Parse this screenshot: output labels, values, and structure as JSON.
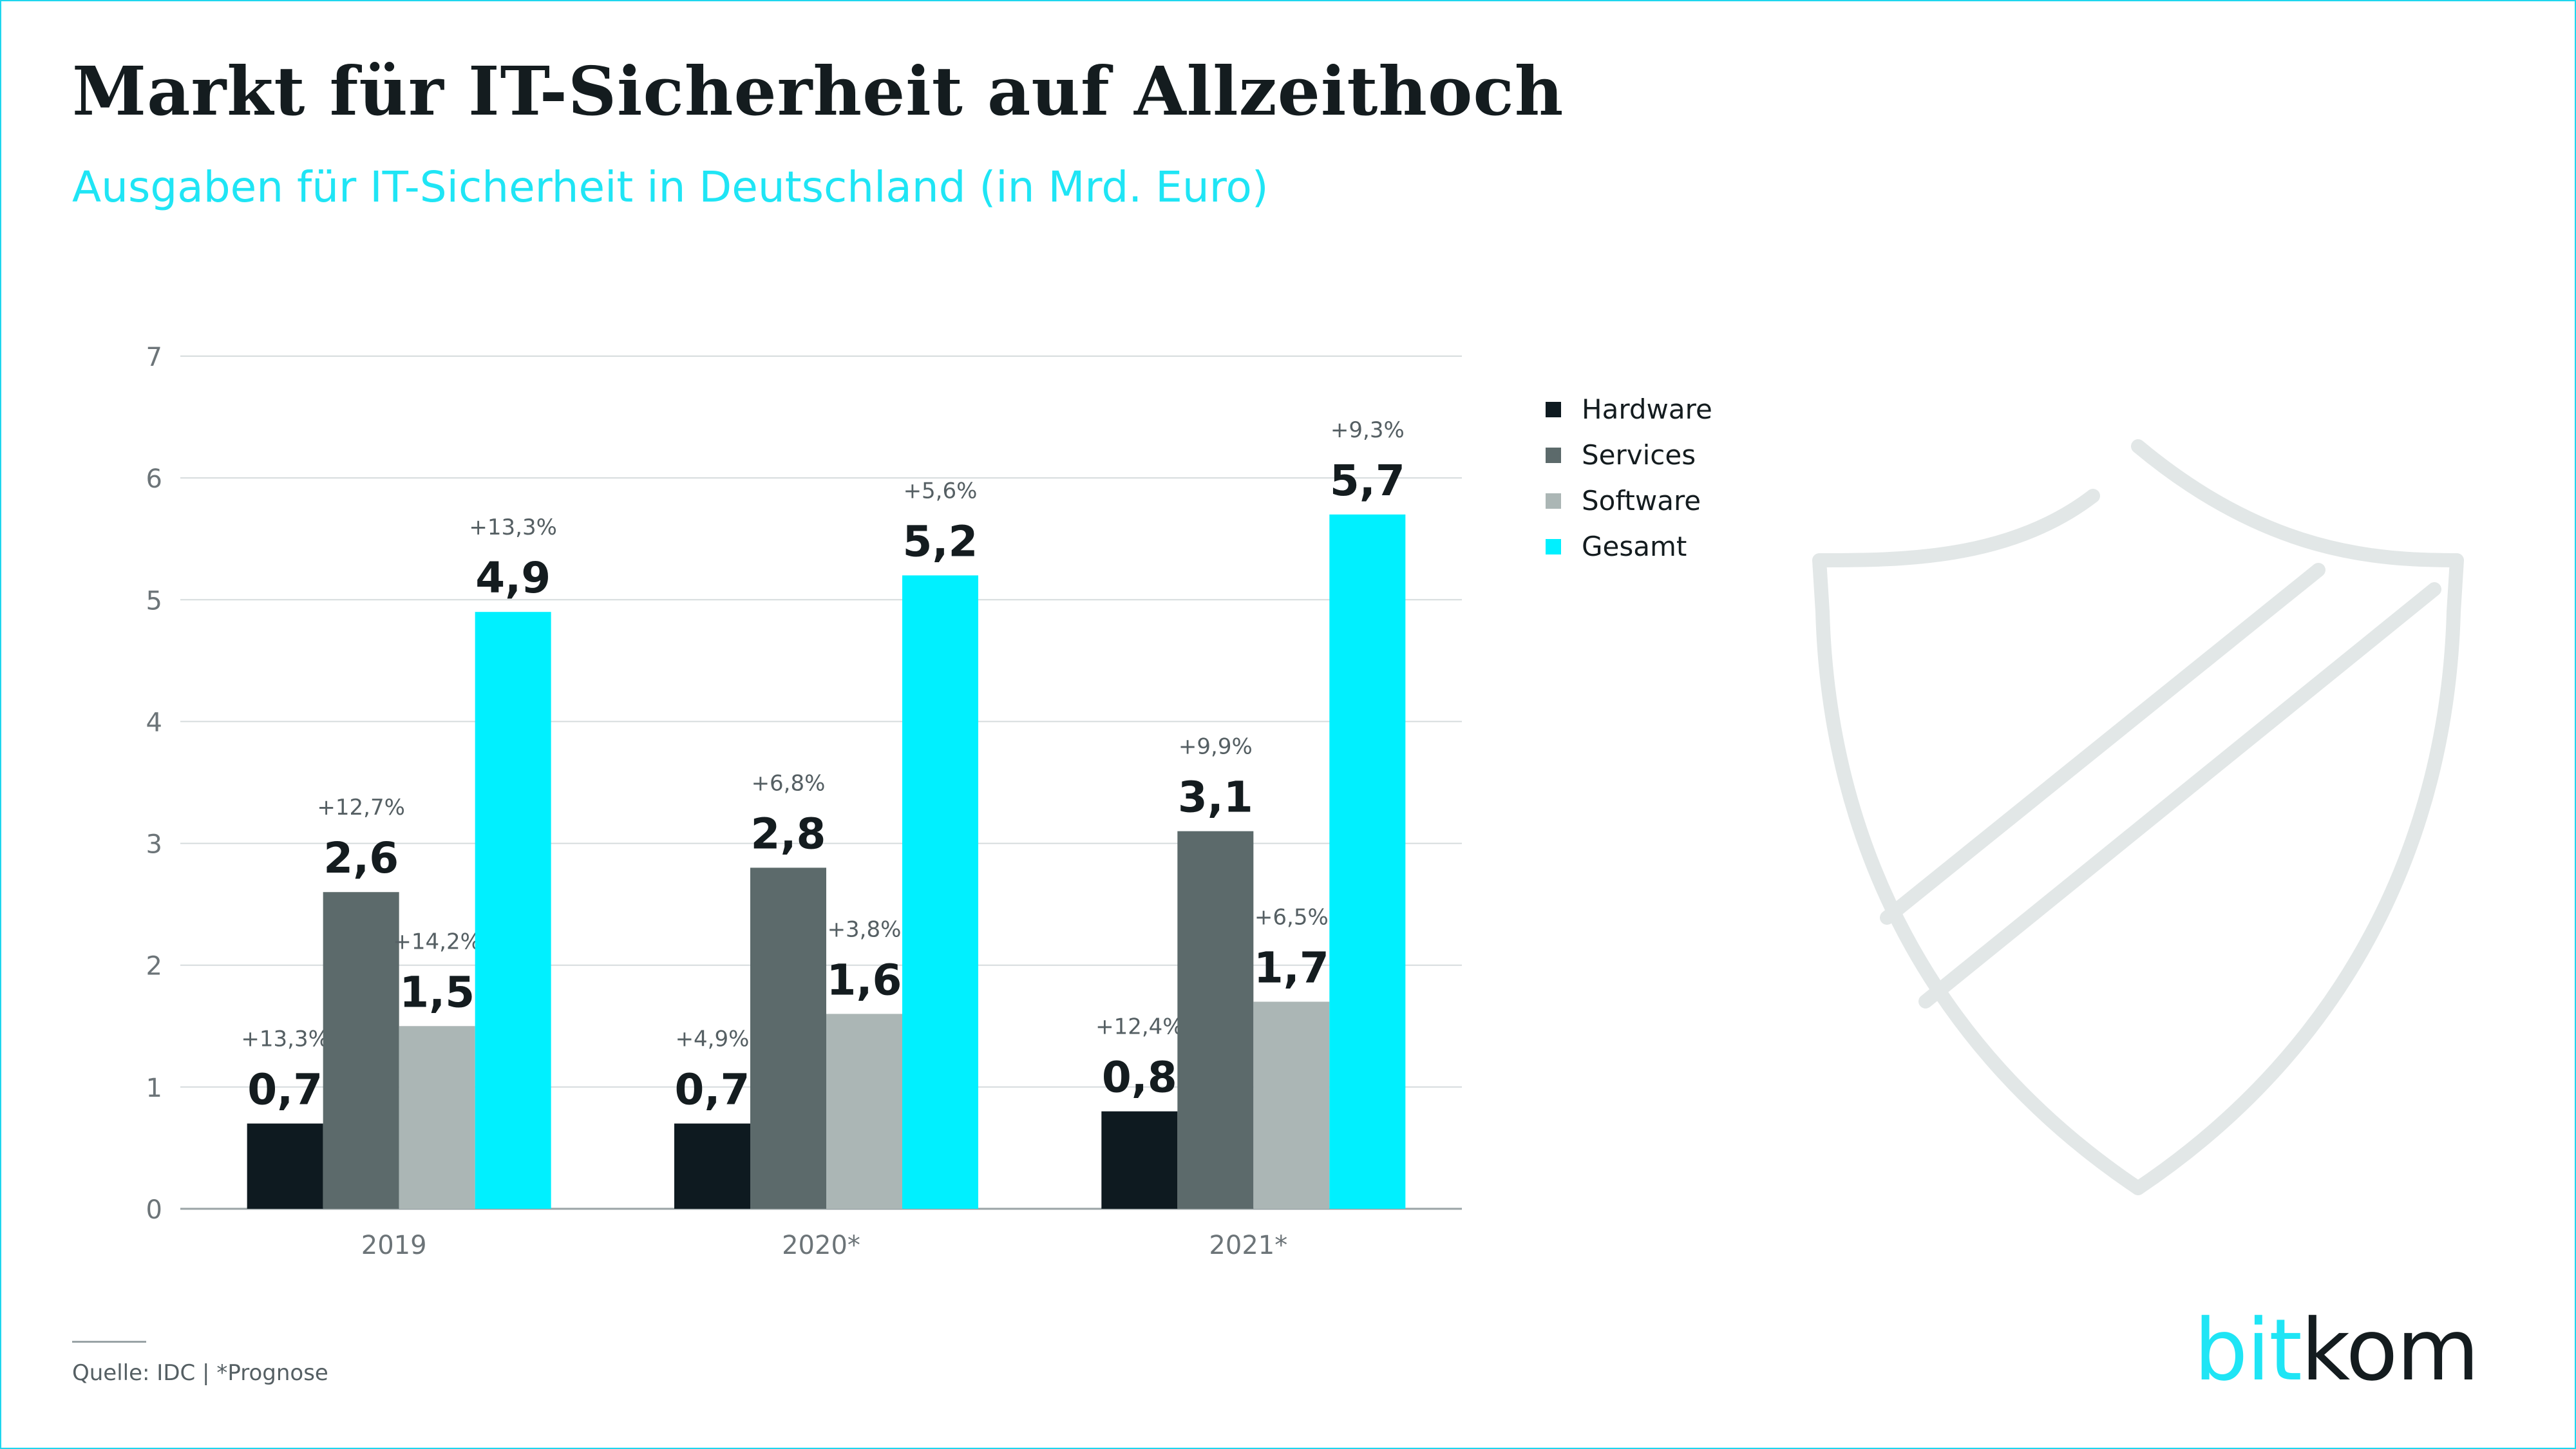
{
  "title": "Markt für IT-Sicherheit auf Allzeithoch",
  "subtitle": "Ausgaben für IT-Sicherheit in Deutschland (in Mrd. Euro)",
  "source": "Quelle: IDC | *Prognose",
  "logo": {
    "part1": "bit",
    "part2": "kom"
  },
  "colors": {
    "Hardware": "#0e1a20",
    "Services": "#5c6a6b",
    "Software": "#abb6b5",
    "Gesamt": "#00f0ff",
    "grid": "#d6dcdd",
    "axis_text": "#6c7478",
    "shield": "#e2e7e7"
  },
  "chart_data": {
    "type": "bar",
    "categories": [
      "2019",
      "2020*",
      "2021*"
    ],
    "ylim": [
      0,
      7
    ],
    "yticks": [
      "0",
      "1",
      "2",
      "3",
      "4",
      "5",
      "6",
      "7"
    ],
    "legend_position": "right",
    "grid": true,
    "series": [
      {
        "name": "Hardware",
        "values": [
          0.7,
          0.7,
          0.8
        ],
        "labels": [
          "0,7",
          "0,7",
          "0,8"
        ],
        "growth": [
          "+13,3%",
          "+4,9%",
          "+12,4%"
        ]
      },
      {
        "name": "Services",
        "values": [
          2.6,
          2.8,
          3.1
        ],
        "labels": [
          "2,6",
          "2,8",
          "3,1"
        ],
        "growth": [
          "+12,7%",
          "+6,8%",
          "+9,9%"
        ]
      },
      {
        "name": "Software",
        "values": [
          1.5,
          1.6,
          1.7
        ],
        "labels": [
          "1,5",
          "1,6",
          "1,7"
        ],
        "growth": [
          "+14,2%",
          "+3,8%",
          "+6,5%"
        ]
      },
      {
        "name": "Gesamt",
        "values": [
          4.9,
          5.2,
          5.7
        ],
        "labels": [
          "4,9",
          "5,2",
          "5,7"
        ],
        "growth": [
          "+13,3%",
          "+5,6%",
          "+9,3%"
        ]
      }
    ]
  }
}
